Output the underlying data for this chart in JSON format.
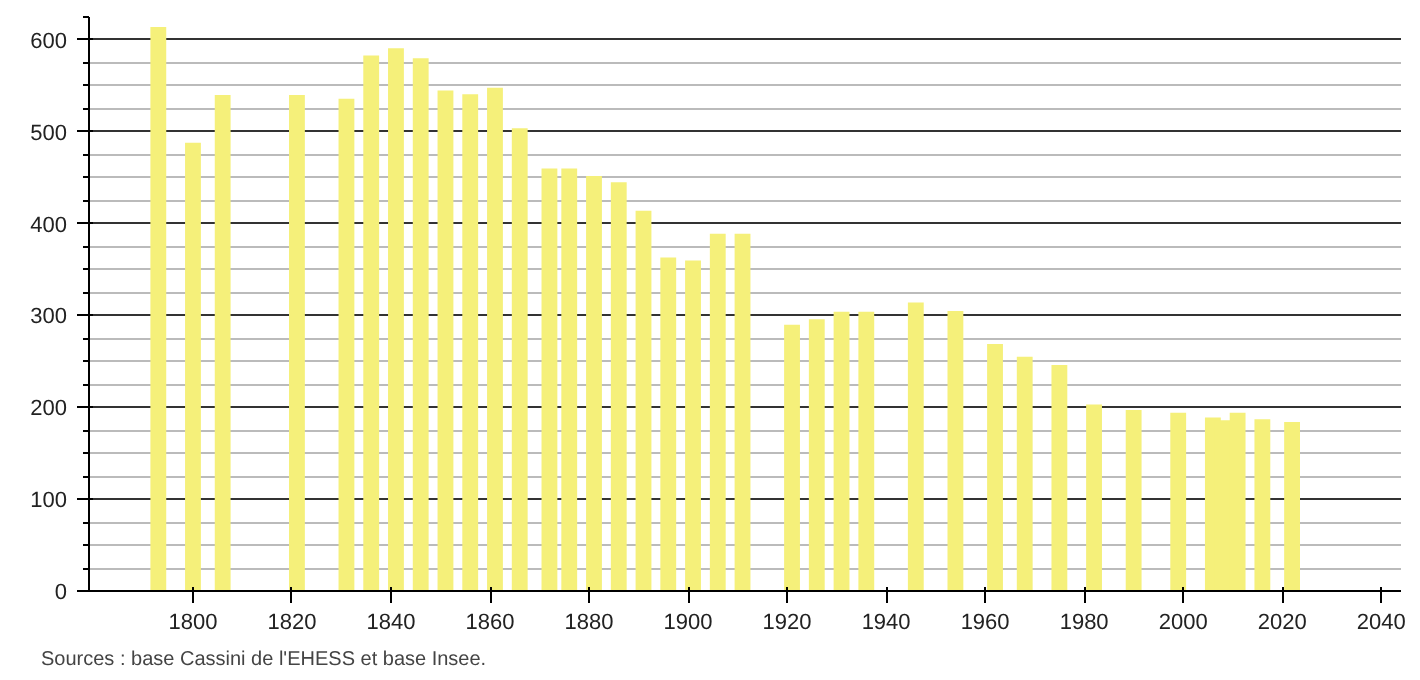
{
  "chart_data": {
    "type": "bar",
    "x": [
      1793,
      1800,
      1806,
      1821,
      1831,
      1836,
      1841,
      1846,
      1851,
      1856,
      1861,
      1866,
      1872,
      1876,
      1881,
      1886,
      1891,
      1896,
      1901,
      1906,
      1911,
      1921,
      1926,
      1931,
      1936,
      1946,
      1954,
      1962,
      1968,
      1975,
      1982,
      1990,
      1999,
      2006,
      2008,
      2011,
      2016,
      2021,
      2022
    ],
    "values": [
      614,
      488,
      540,
      540,
      536,
      583,
      591,
      580,
      545,
      541,
      548,
      504,
      460,
      460,
      452,
      445,
      414,
      363,
      360,
      389,
      389,
      290,
      296,
      304,
      304,
      314,
      305,
      269,
      255,
      246,
      203,
      197,
      194,
      189,
      186,
      194,
      187,
      null,
      184
    ],
    "color": "#f5f07a",
    "xlim": [
      1779,
      2044
    ],
    "xticks": [
      1800,
      1820,
      1840,
      1860,
      1880,
      1900,
      1920,
      1940,
      1960,
      1980,
      2000,
      2020,
      2040
    ],
    "ylim": [
      0,
      625
    ],
    "yticks": [
      0,
      {
        "value": 25,
        "label": null
      },
      {
        "value": 50,
        "label": null
      },
      {
        "value": 75,
        "label": null
      },
      100,
      {
        "value": 125,
        "label": null
      },
      {
        "value": 150,
        "label": null
      },
      {
        "value": 175,
        "label": null
      },
      200,
      {
        "value": 225,
        "label": null
      },
      {
        "value": 250,
        "label": null
      },
      {
        "value": 275,
        "label": null
      },
      300,
      {
        "value": 325,
        "label": null
      },
      {
        "value": 350,
        "label": null
      },
      {
        "value": 375,
        "label": null
      },
      400,
      {
        "value": 425,
        "label": null
      },
      {
        "value": 450,
        "label": null
      },
      {
        "value": 475,
        "label": null
      },
      500,
      {
        "value": 525,
        "label": null
      },
      {
        "value": 550,
        "label": null
      },
      {
        "value": 575,
        "label": null
      },
      600,
      {
        "value": 625,
        "label": null
      }
    ],
    "grid": "y",
    "annotations": [
      "Sources : base Cassini de l'EHESS et base Insee."
    ]
  }
}
